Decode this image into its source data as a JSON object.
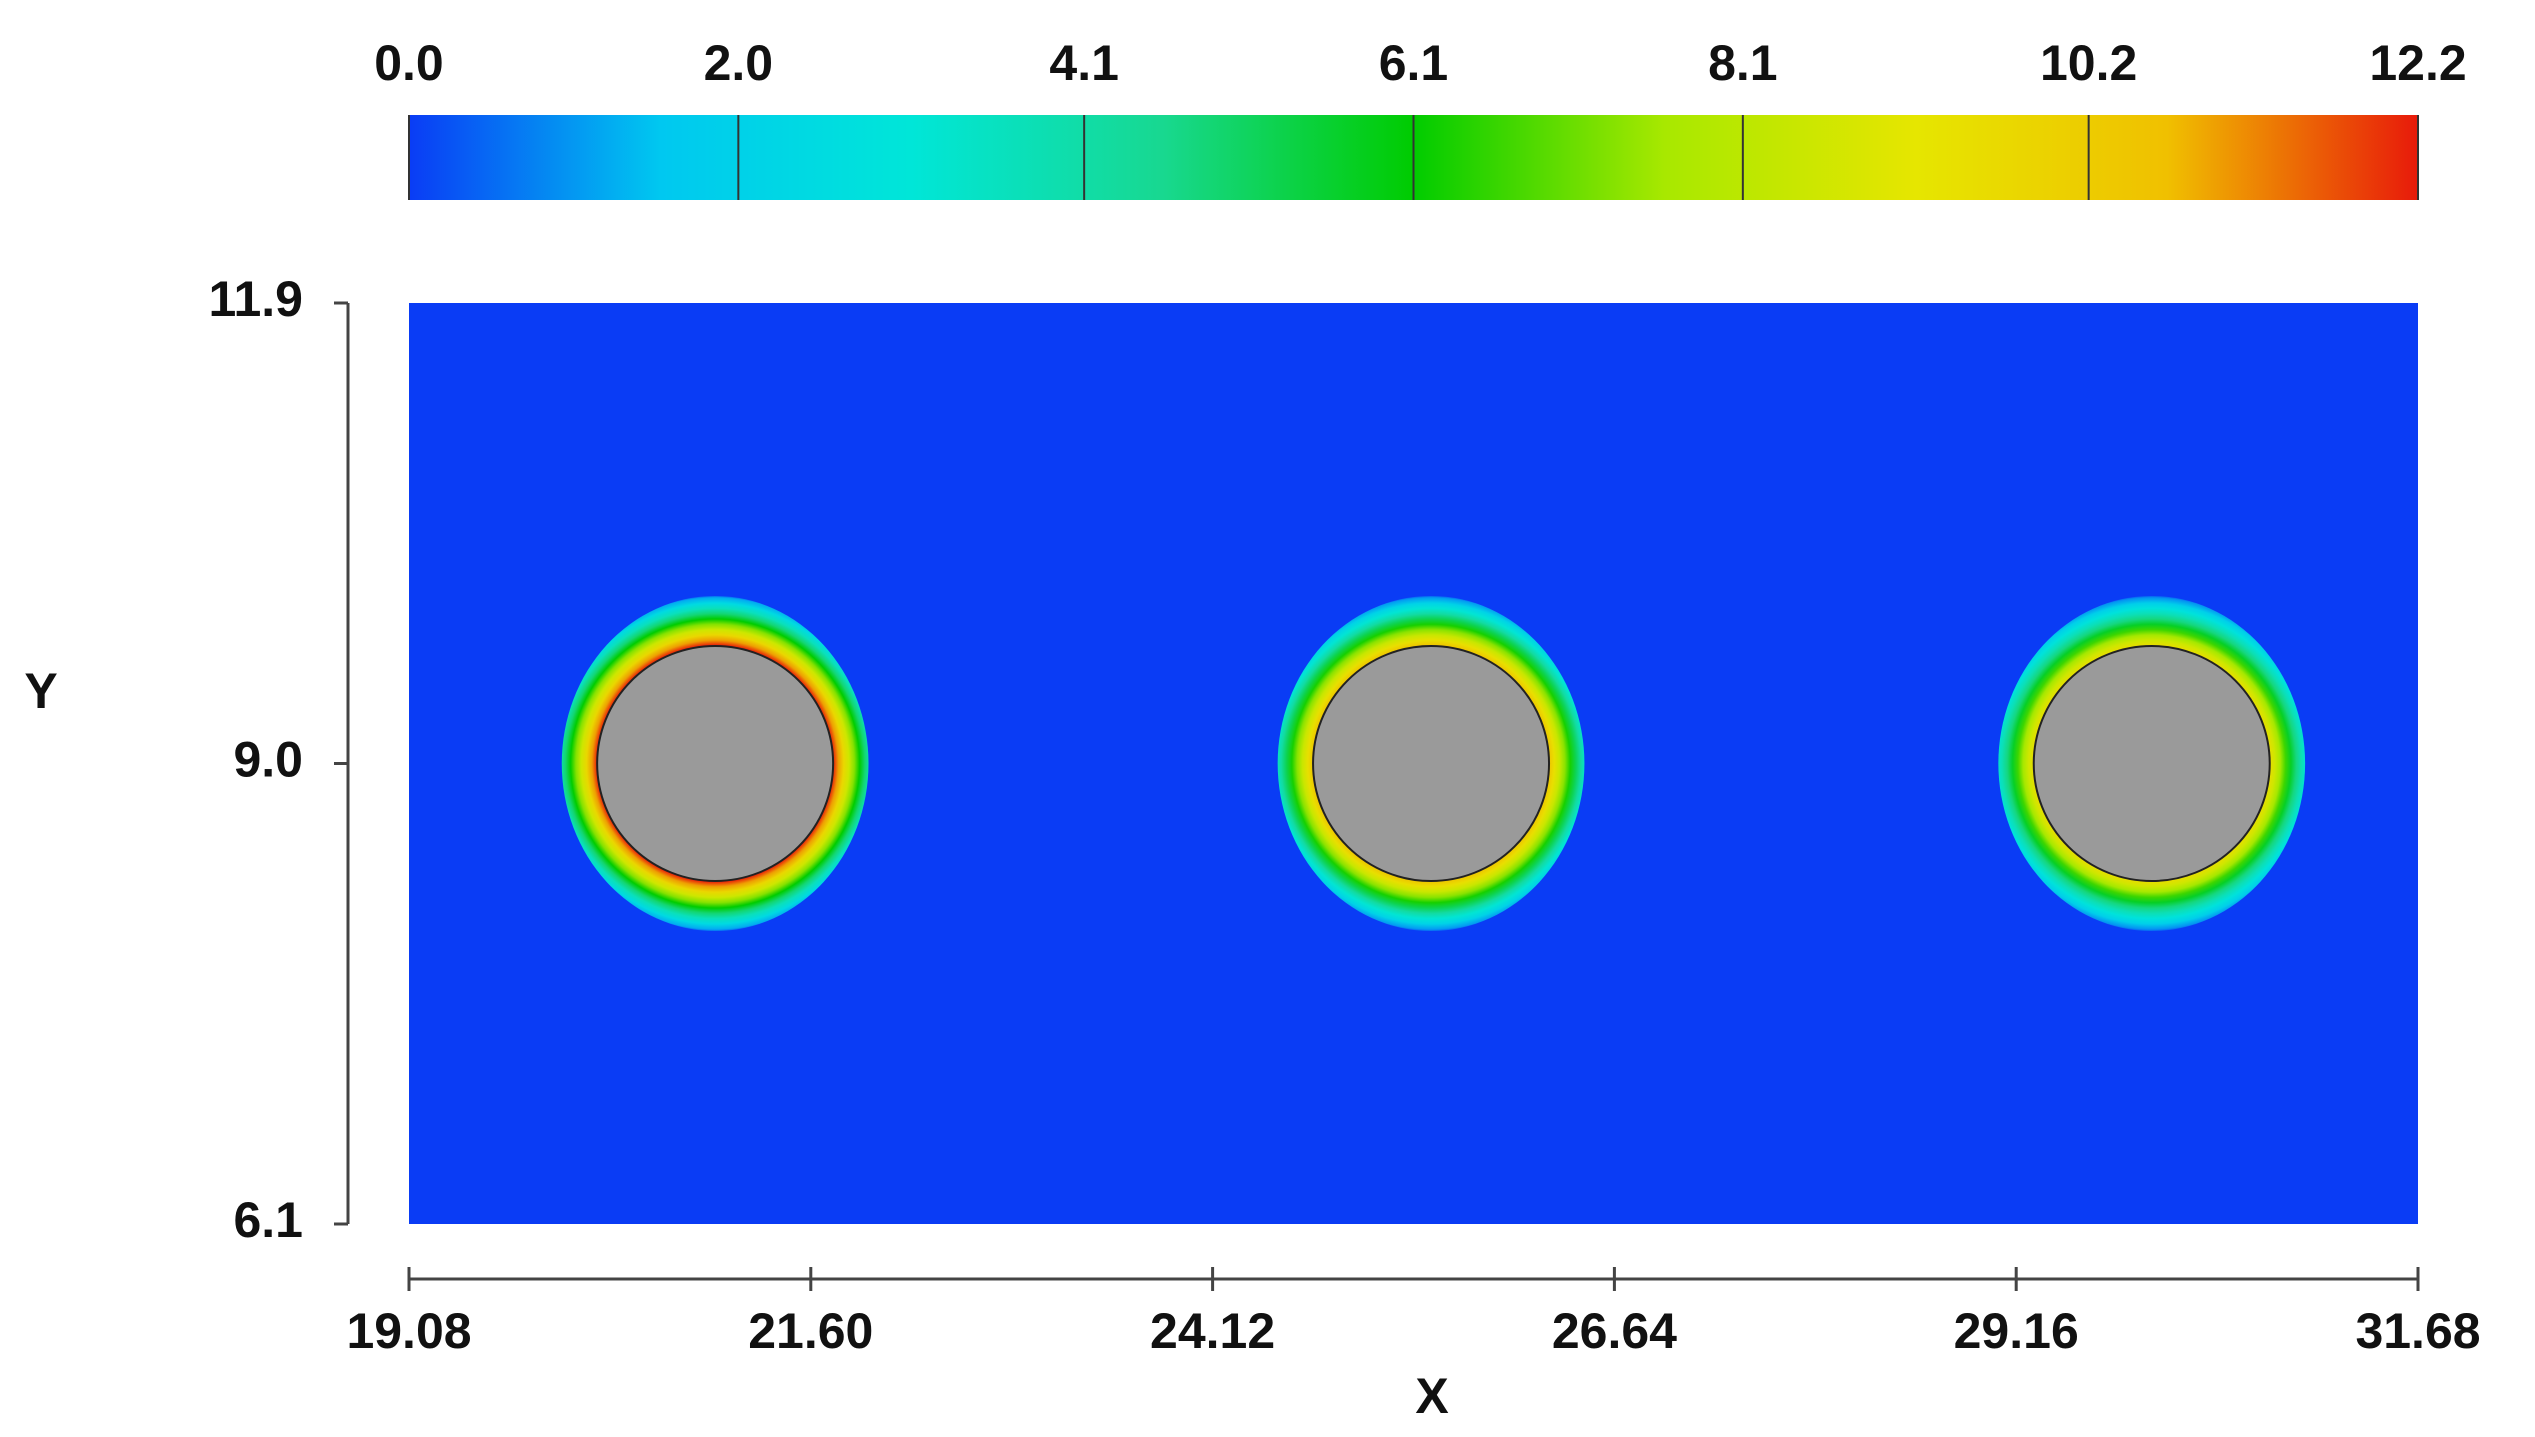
{
  "chart_data": {
    "type": "contour",
    "xlabel": "X",
    "ylabel": "Y",
    "xlim": [
      19.08,
      31.68
    ],
    "xticks": [
      19.08,
      {
        "value": 21.6,
        "label": "21.60"
      },
      24.12,
      26.64,
      29.16,
      31.68
    ],
    "ylim": [
      6.1,
      11.9
    ],
    "yticks": [
      6.1,
      {
        "value": 9,
        "label": "9.0"
      },
      11.9
    ],
    "clim": [
      0,
      12.2
    ],
    "cticks": [
      {
        "value": 0,
        "label": "0.0"
      },
      {
        "value": 2,
        "label": "2.0"
      },
      4.1,
      6.1,
      8.1,
      10.2,
      12.2
    ],
    "colormap": [
      "#0a3cf5",
      "#00c8f0",
      "#00e6d8",
      "#18d890",
      "#00cc00",
      "#a8e800",
      "#e6e600",
      "#f0c000",
      "#e81a0a"
    ],
    "obstacle_color": "#9a9a9a",
    "obstacles": [
      {
        "x": 21.0,
        "y": 9.0,
        "r": 0.74,
        "peak": 12.2
      },
      {
        "x": 25.49,
        "y": 9.0,
        "r": 0.74,
        "peak": 10.5
      },
      {
        "x": 30.01,
        "y": 9.0,
        "r": 0.74,
        "peak": 9.5
      }
    ]
  }
}
